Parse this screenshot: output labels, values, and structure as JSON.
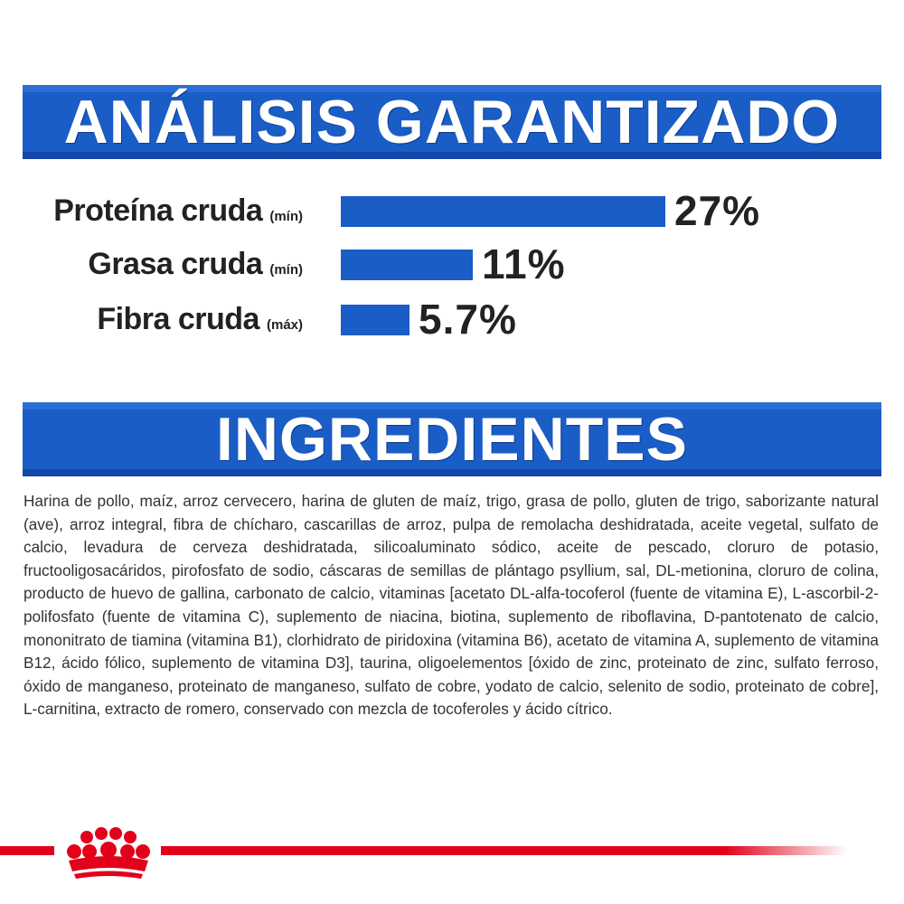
{
  "analysis": {
    "title": "ANÁLISIS GARANTIZADO",
    "nutrients": [
      {
        "name": "Proteína cruda",
        "qualifier": "(mín)",
        "value": "27%",
        "fraction": 0.27
      },
      {
        "name": "Grasa cruda",
        "qualifier": "(mín)",
        "value": "11%",
        "fraction": 0.11
      },
      {
        "name": "Fibra cruda",
        "qualifier": "(máx)",
        "value": "5.7%",
        "fraction": 0.057
      }
    ]
  },
  "ingredients": {
    "title": "INGREDIENTES",
    "text": "Harina de pollo, maíz, arroz cervecero, harina de gluten de maíz, trigo, grasa de pollo, gluten de trigo, saborizante natural (ave), arroz integral, fibra de chícharo, cascarillas de arroz, pulpa de remolacha deshidratada, aceite vegetal, sulfato de calcio, levadura de cerveza deshidratada, silicoaluminato sódico, aceite de pescado, cloruro de potasio, fructooligosacáridos, pirofosfato de sodio, cáscaras de semillas de plántago psyllium, sal, DL-metionina, cloruro de colina, producto de huevo de gallina, carbonato de calcio, vitaminas [acetato DL-alfa-tocoferol (fuente de vitamina E), L-ascorbil-2-polifosfato (fuente de vitamina C), suplemento de niacina, biotina, suplemento de riboflavina, D-pantotenato de calcio, mononitrato de tiamina (vitamina B1), clorhidrato de piridoxina (vitamina B6), acetato de vitamina A, suplemento de vitamina B12, ácido fólico, suplemento de vitamina D3], taurina, oligoelementos [óxido de zinc, proteinato de zinc, sulfato ferroso, óxido de manganeso, proteinato de manganeso, sulfato de cobre, yodato de calcio, selenito de sodio, proteinato de cobre], L-carnitina, extracto de romero, conservado con mezcla de tocoferoles y ácido cítrico."
  },
  "logo": {
    "icon": "royal-canin-crown-icon",
    "color": "#e2001a"
  },
  "colors": {
    "banner": "#1a5dc7",
    "accent": "#e2001a"
  }
}
